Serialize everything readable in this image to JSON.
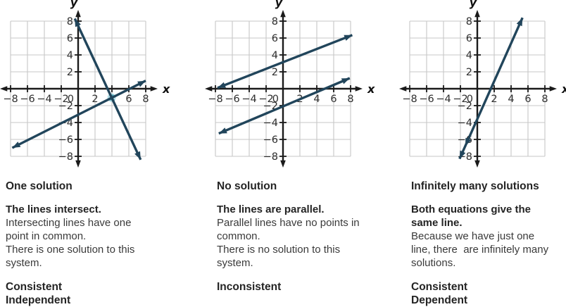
{
  "figure": {
    "line_color": "#21455b",
    "axis_color": "#1a1a1a",
    "grid_color": "#c7c7c7",
    "tick_label_color": "#2e2e2e",
    "highlight_color": "#3e9fb3",
    "point_color": "#85ccd9"
  },
  "chart_data": [
    {
      "type": "line",
      "title": "One solution",
      "xlabel": "x",
      "ylabel": "y",
      "xlim": [
        -8,
        8
      ],
      "ylim": [
        -8,
        8
      ],
      "tick_step": 2,
      "grid": true,
      "origin_label": "0",
      "x_tick_labels": [
        "−8",
        "−6",
        "−4",
        "−2",
        "2",
        "4",
        "6",
        "8"
      ],
      "y_tick_labels": [
        "8",
        "6",
        "4",
        "2",
        "−2",
        "−4",
        "−6",
        "−8"
      ],
      "highlight_x_tick": "4",
      "lines": [
        {
          "x1": -0.4,
          "y1": 8.3,
          "x2": 7.4,
          "y2": -8.4
        },
        {
          "x1": -7.8,
          "y1": -7.0,
          "x2": 8.0,
          "y2": 0.95
        }
      ],
      "intersection_point": {
        "x": 3.97,
        "y": -1.05
      },
      "extra_arrowheads": []
    },
    {
      "type": "line",
      "title": "No solution",
      "xlabel": "x",
      "ylabel": "y",
      "xlim": [
        -8,
        8
      ],
      "ylim": [
        -8,
        8
      ],
      "tick_step": 2,
      "grid": true,
      "origin_label": "0",
      "x_tick_labels": [
        "−8",
        "−6",
        "−4",
        "−2",
        "2",
        "4",
        "6",
        "8"
      ],
      "y_tick_labels": [
        "8",
        "6",
        "4",
        "2",
        "−2",
        "−4",
        "−6",
        "−8"
      ],
      "highlight_x_tick": "",
      "lines": [
        {
          "x1": -7.75,
          "y1": 0.1,
          "x2": 8.2,
          "y2": 6.35
        },
        {
          "x1": -7.6,
          "y1": -5.3,
          "x2": 7.9,
          "y2": 1.25
        }
      ],
      "intersection_point": null,
      "extra_arrowheads": []
    },
    {
      "type": "line",
      "title": "Infinitely many solutions",
      "xlabel": "x",
      "ylabel": "y",
      "xlim": [
        -8,
        8
      ],
      "ylim": [
        -8,
        8
      ],
      "tick_step": 2,
      "grid": true,
      "origin_label": "0",
      "x_tick_labels": [
        "−8",
        "−6",
        "−4",
        "−2",
        "2",
        "4",
        "6",
        "8"
      ],
      "y_tick_labels": [
        "8",
        "6",
        "4",
        "2",
        "−2",
        "−4",
        "−6",
        "−8"
      ],
      "highlight_x_tick": "",
      "lines": [
        {
          "x1": -2.1,
          "y1": -8.3,
          "x2": 5.35,
          "y2": 8.4
        }
      ],
      "intersection_point": null,
      "extra_arrowheads": [
        {
          "line": 0,
          "t": 0.09,
          "toward": "start"
        }
      ]
    }
  ],
  "panels": [
    {
      "text": {
        "title": "One solution",
        "lead": "The lines intersect.",
        "body1": "Intersecting lines have one point in common.",
        "body2": "There is one solution to this system.",
        "tags": [
          "Consistent",
          "Independent"
        ]
      }
    },
    {
      "text": {
        "title": "No solution",
        "lead": "The lines are parallel.",
        "body1": "Parallel lines have no points in common.",
        "body2": "There is no solution to this system.",
        "tags": [
          "Inconsistent"
        ]
      }
    },
    {
      "text": {
        "title": "Infinitely many solutions",
        "lead": "Both equations give the same line.",
        "body1": "Because we have just one line, there  are infinitely many solutions.",
        "body2": "",
        "tags": [
          "Consistent",
          "Dependent"
        ]
      }
    }
  ]
}
